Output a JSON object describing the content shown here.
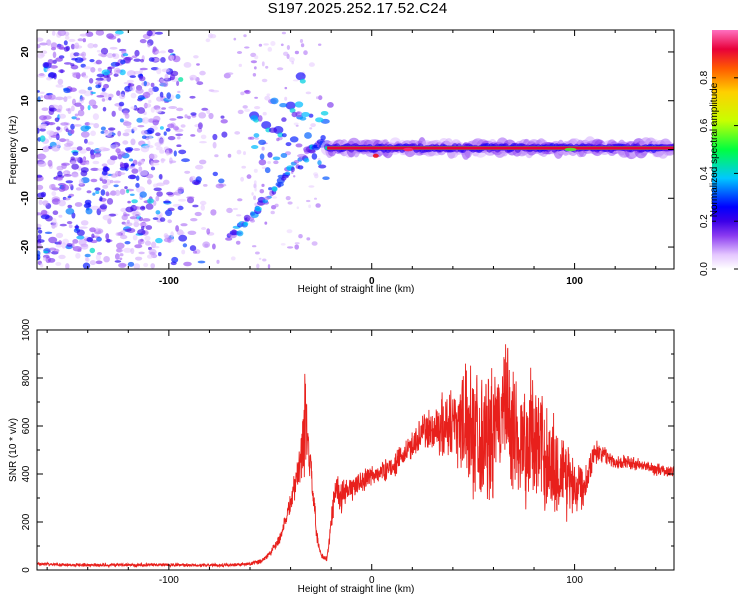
{
  "chart_data": [
    {
      "type": "heatmap",
      "title": "S197.2025.252.17.52.C24",
      "xlabel": "Height of straight line (km)",
      "ylabel": "Frequency (Hz)",
      "xlim": [
        -165,
        149
      ],
      "ylim": [
        -24.5,
        24.5
      ],
      "x_ticks": [
        -100,
        0,
        100
      ],
      "x_tick_labels": [
        "-100",
        "0",
        "100"
      ],
      "y_ticks": [
        -20,
        -10,
        0,
        10,
        20
      ],
      "y_tick_labels": [
        "-20",
        "-10",
        "0",
        "10",
        "20"
      ],
      "colorbar": {
        "label": "Normalized spectral amplitude",
        "range": [
          0,
          1
        ],
        "ticks": [
          0.0,
          0.2,
          0.4,
          0.6,
          0.8
        ],
        "tick_labels": [
          "0.0",
          "0.2",
          "0.4",
          "0.6",
          "0.8"
        ],
        "colors": [
          "#ffffff",
          "#e4c6ff",
          "#8a3af0",
          "#3b00e8",
          "#0000ff",
          "#00c8ff",
          "#00ff40",
          "#c8ff00",
          "#ffd000",
          "#ff5a00",
          "#e8003a",
          "#ff70c0"
        ]
      },
      "features": [
        {
          "name": "noise",
          "x_range": [
            -165,
            -65
          ],
          "y_range": [
            -24,
            24
          ],
          "amplitude": [
            0.05,
            0.3
          ]
        },
        {
          "name": "rising chirp",
          "points": [
            [
              -70,
              -18
            ],
            [
              -60,
              -14
            ],
            [
              -50,
              -9
            ],
            [
              -40,
              -4
            ],
            [
              -30,
              0
            ],
            [
              -22,
              2
            ]
          ],
          "amplitude": [
            0.15,
            0.35
          ]
        },
        {
          "name": "head echo line",
          "x_range": [
            -22,
            149
          ],
          "frequency": 0.3,
          "amplitude": [
            0.7,
            1.0
          ]
        },
        {
          "name": "upper blobs",
          "points": [
            [
              -58,
              7
            ],
            [
              -52,
              5
            ],
            [
              -46,
              4
            ],
            [
              -40,
              9
            ],
            [
              -35,
              15
            ]
          ],
          "amplitude": [
            0.2,
            0.45
          ]
        }
      ]
    },
    {
      "type": "line",
      "xlabel": "Height of straight line (km)",
      "ylabel": "SNR (10 * v/v)",
      "xlim": [
        -165,
        149
      ],
      "ylim": [
        0,
        1000
      ],
      "x_ticks": [
        -100,
        0,
        100
      ],
      "x_tick_labels": [
        "-100",
        "0",
        "100"
      ],
      "y_ticks": [
        0,
        200,
        400,
        600,
        800,
        1000
      ],
      "y_tick_labels": [
        "0",
        "200",
        "400",
        "600",
        "800",
        "1000"
      ],
      "color": "#e8201c",
      "series": [
        {
          "name": "SNR",
          "x": [
            -165,
            -150,
            -130,
            -110,
            -90,
            -70,
            -60,
            -55,
            -50,
            -45,
            -40,
            -36,
            -33,
            -31,
            -29,
            -27,
            -25,
            -22,
            -18,
            -15,
            -10,
            -5,
            0,
            5,
            10,
            15,
            20,
            25,
            30,
            35,
            40,
            45,
            50,
            55,
            60,
            65,
            70,
            75,
            80,
            85,
            90,
            95,
            100,
            105,
            110,
            115,
            120,
            125,
            130,
            135,
            140,
            145,
            149
          ],
          "y": [
            25,
            22,
            20,
            22,
            20,
            20,
            25,
            35,
            70,
            140,
            280,
            420,
            600,
            480,
            330,
            130,
            60,
            45,
            350,
            300,
            340,
            370,
            390,
            410,
            430,
            470,
            520,
            580,
            580,
            600,
            620,
            620,
            600,
            560,
            540,
            700,
            580,
            520,
            560,
            480,
            420,
            400,
            360,
            360,
            500,
            480,
            450,
            450,
            440,
            430,
            420,
            410,
            415
          ],
          "spread": [
            8,
            8,
            8,
            8,
            8,
            8,
            8,
            12,
            18,
            30,
            60,
            80,
            260,
            120,
            80,
            40,
            15,
            20,
            80,
            80,
            60,
            60,
            50,
            50,
            55,
            60,
            70,
            90,
            120,
            160,
            200,
            260,
            320,
            330,
            320,
            300,
            350,
            300,
            320,
            300,
            260,
            220,
            180,
            90,
            60,
            40,
            35,
            35,
            35,
            30,
            30,
            30,
            30
          ]
        }
      ]
    }
  ]
}
